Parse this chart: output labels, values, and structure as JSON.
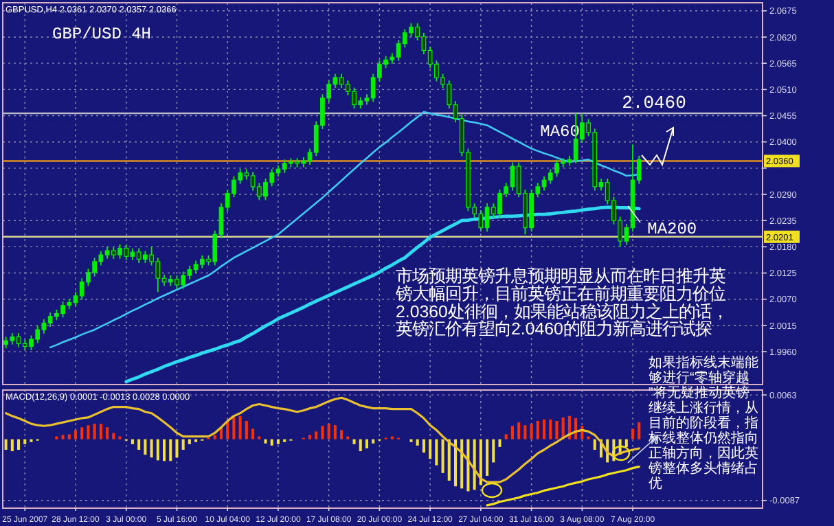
{
  "chart_data": [
    {
      "type": "candlestick",
      "title": "GBP/USD 4H",
      "categories": [
        null,
        null,
        null,
        null,
        null,
        null,
        null,
        null,
        null,
        null,
        null,
        null,
        null,
        null,
        null,
        null,
        null,
        null,
        null,
        null,
        null,
        null,
        null,
        null,
        null,
        null,
        null,
        null,
        null,
        null,
        null,
        null,
        null,
        null,
        null,
        null,
        null,
        null,
        null,
        null,
        null,
        null,
        null,
        null,
        null,
        null,
        null,
        null,
        null,
        null,
        null,
        null,
        null,
        null,
        null,
        null,
        null,
        null,
        null,
        null,
        null,
        null,
        null,
        null,
        null,
        null,
        null,
        null,
        null,
        null,
        null,
        null,
        null,
        null,
        null,
        null,
        null,
        null,
        null,
        null,
        null,
        null,
        null,
        null,
        null,
        null,
        null,
        null,
        null,
        null,
        null,
        null,
        null,
        null,
        null,
        null,
        null,
        null,
        null,
        null,
        null
      ],
      "ohlc": [
        [
          1.9975,
          1.9991,
          1.9967,
          1.9983
        ],
        [
          1.9983,
          1.9999,
          1.9975,
          1.9991
        ],
        [
          1.9991,
          1.9999,
          1.9969,
          1.9977
        ],
        [
          1.9977,
          1.9985,
          1.9963,
          1.9971
        ],
        [
          1.9971,
          1.9994,
          1.9963,
          1.9986
        ],
        [
          1.9986,
          2.0014,
          1.9978,
          2.0006
        ],
        [
          2.0006,
          2.0028,
          1.9998,
          2.002
        ],
        [
          2.002,
          2.0042,
          2.0012,
          2.0034
        ],
        [
          2.0034,
          2.0048,
          2.0026,
          2.004
        ],
        [
          2.004,
          2.0065,
          2.0032,
          2.0057
        ],
        [
          2.0057,
          2.0071,
          2.0049,
          2.0063
        ],
        [
          2.0063,
          2.0085,
          2.0055,
          2.0077
        ],
        [
          2.0077,
          2.0114,
          2.0069,
          2.0106
        ],
        [
          2.0106,
          2.0134,
          2.0098,
          2.0126
        ],
        [
          2.0126,
          2.0157,
          2.0118,
          2.0149
        ],
        [
          2.0149,
          2.0171,
          2.0141,
          2.0163
        ],
        [
          2.0163,
          2.018,
          2.0155,
          2.0172
        ],
        [
          2.0172,
          2.018,
          2.0155,
          2.0163
        ],
        [
          2.0163,
          2.0185,
          2.0155,
          2.0177
        ],
        [
          2.0177,
          2.0185,
          2.0152,
          2.016
        ],
        [
          2.016,
          2.0177,
          2.0152,
          2.0169
        ],
        [
          2.0169,
          2.0177,
          2.0146,
          2.0154
        ],
        [
          2.0154,
          2.0171,
          2.0146,
          2.0163
        ],
        [
          2.0163,
          2.018,
          2.0141,
          2.0149
        ],
        [
          2.0149,
          2.0157,
          2.0085,
          2.0114
        ],
        [
          2.0114,
          2.0122,
          2.0098,
          2.0106
        ],
        [
          2.0106,
          2.012,
          2.0098,
          2.0112
        ],
        [
          2.0112,
          2.012,
          2.0092,
          2.01
        ],
        [
          2.01,
          2.0128,
          2.0092,
          2.012
        ],
        [
          2.012,
          2.014,
          2.0112,
          2.0132
        ],
        [
          2.0132,
          2.0151,
          2.0124,
          2.0143
        ],
        [
          2.0143,
          2.0162,
          2.0135,
          2.0154
        ],
        [
          2.0154,
          2.0162,
          2.0141,
          2.0149
        ],
        [
          2.0149,
          2.0214,
          2.0141,
          2.0206
        ],
        [
          2.0206,
          2.0271,
          2.0198,
          2.0263
        ],
        [
          2.0263,
          2.03,
          2.0255,
          2.0292
        ],
        [
          2.0292,
          2.0328,
          2.0284,
          2.032
        ],
        [
          2.032,
          2.0343,
          2.0312,
          2.0335
        ],
        [
          2.0335,
          2.0343,
          2.0321,
          2.0329
        ],
        [
          2.0329,
          2.0337,
          2.0298,
          2.0306
        ],
        [
          2.0306,
          2.0314,
          2.0278,
          2.0286
        ],
        [
          2.0286,
          2.0323,
          2.0278,
          2.0315
        ],
        [
          2.0315,
          2.0343,
          2.0307,
          2.0335
        ],
        [
          2.0335,
          2.0351,
          2.0327,
          2.0343
        ],
        [
          2.0343,
          2.0363,
          2.0335,
          2.0355
        ],
        [
          2.0355,
          2.0366,
          2.0347,
          2.0358
        ],
        [
          2.0358,
          2.0366,
          2.0347,
          2.0355
        ],
        [
          2.0355,
          2.0368,
          2.0347,
          2.036
        ],
        [
          2.036,
          2.0386,
          2.0352,
          2.0378
        ],
        [
          2.0378,
          2.0443,
          2.037,
          2.0435
        ],
        [
          2.0435,
          2.05,
          2.0427,
          2.0492
        ],
        [
          2.0492,
          2.0529,
          2.0484,
          2.0521
        ],
        [
          2.0521,
          2.0543,
          2.0513,
          2.0535
        ],
        [
          2.0535,
          2.0543,
          2.0513,
          2.0521
        ],
        [
          2.0521,
          2.0529,
          2.0498,
          2.0506
        ],
        [
          2.0506,
          2.0514,
          2.047,
          2.0478
        ],
        [
          2.0478,
          2.0494,
          2.047,
          2.0486
        ],
        [
          2.0486,
          2.05,
          2.0478,
          2.0492
        ],
        [
          2.0492,
          2.0543,
          2.0484,
          2.0535
        ],
        [
          2.0535,
          2.0571,
          2.0527,
          2.0563
        ],
        [
          2.0563,
          2.058,
          2.0555,
          2.0572
        ],
        [
          2.0572,
          2.0586,
          2.0564,
          2.0578
        ],
        [
          2.0578,
          2.0614,
          2.057,
          2.0606
        ],
        [
          2.0606,
          2.0637,
          2.0598,
          2.0629
        ],
        [
          2.0629,
          2.0649,
          2.0621,
          2.0641
        ],
        [
          2.0641,
          2.0649,
          2.0613,
          2.0621
        ],
        [
          2.0621,
          2.0629,
          2.0584,
          2.0592
        ],
        [
          2.0592,
          2.06,
          2.0555,
          2.0563
        ],
        [
          2.0563,
          2.0571,
          2.0527,
          2.0535
        ],
        [
          2.0535,
          2.0543,
          2.0513,
          2.0521
        ],
        [
          2.0521,
          2.0529,
          2.047,
          2.0478
        ],
        [
          2.0478,
          2.0486,
          2.0441,
          2.0449
        ],
        [
          2.0449,
          2.0457,
          2.037,
          2.0378
        ],
        [
          2.0378,
          2.0386,
          2.0255,
          2.0263
        ],
        [
          2.0263,
          2.0271,
          2.0241,
          2.0249
        ],
        [
          2.0249,
          2.0257,
          2.0212,
          2.022
        ],
        [
          2.022,
          2.0271,
          2.0212,
          2.0263
        ],
        [
          2.0263,
          2.0271,
          2.0241,
          2.0249
        ],
        [
          2.0249,
          2.03,
          2.0241,
          2.0292
        ],
        [
          2.0292,
          2.0314,
          2.0284,
          2.0306
        ],
        [
          2.0306,
          2.0357,
          2.0298,
          2.0349
        ],
        [
          2.0349,
          2.0357,
          2.0284,
          2.0292
        ],
        [
          2.0292,
          2.03,
          2.0206,
          2.022
        ],
        [
          2.022,
          2.03,
          2.0212,
          2.0292
        ],
        [
          2.0292,
          2.0314,
          2.0284,
          2.0306
        ],
        [
          2.0306,
          2.0328,
          2.0298,
          2.032
        ],
        [
          2.032,
          2.0343,
          2.0312,
          2.0335
        ],
        [
          2.0335,
          2.0363,
          2.0327,
          2.0355
        ],
        [
          2.0355,
          2.0366,
          2.0347,
          2.0358
        ],
        [
          2.0358,
          2.0371,
          2.035,
          2.0363
        ],
        [
          2.0363,
          2.046,
          2.0355,
          2.0406
        ],
        [
          2.0406,
          2.046,
          2.0398,
          2.044
        ],
        [
          2.044,
          2.0448,
          2.0412,
          2.042
        ],
        [
          2.042,
          2.0428,
          2.0298,
          2.0306
        ],
        [
          2.0306,
          2.0323,
          2.0298,
          2.0315
        ],
        [
          2.0315,
          2.0323,
          2.0269,
          2.0277
        ],
        [
          2.0277,
          2.0285,
          2.0227,
          2.0235
        ],
        [
          2.0235,
          2.0243,
          2.018,
          2.0192
        ],
        [
          2.0192,
          2.0228,
          2.0184,
          2.022
        ],
        [
          2.022,
          2.0395,
          2.0212,
          2.032
        ],
        [
          2.032,
          2.0371,
          2.0312,
          2.0363
        ]
      ],
      "series": [
        {
          "name": "MA60",
          "type": "line",
          "color": "#40c8f0",
          "values": [
            null,
            null,
            null,
            null,
            null,
            null,
            null,
            1.9969,
            1.9974,
            1.998,
            1.9985,
            1.999,
            1.9996,
            2.0001,
            2.0006,
            2.0013,
            2.0019,
            2.0026,
            2.0032,
            2.0039,
            2.0046,
            2.0052,
            2.0059,
            2.0065,
            2.0072,
            2.0078,
            2.0084,
            2.009,
            2.0096,
            2.0102,
            2.0108,
            2.0114,
            2.012,
            2.0129,
            2.0139,
            2.0148,
            2.0157,
            2.0164,
            2.0171,
            2.0178,
            2.0185,
            2.0192,
            2.0199,
            2.0206,
            2.0217,
            2.0228,
            2.0239,
            2.025,
            2.0261,
            2.0272,
            2.0283,
            2.0295,
            2.0307,
            2.0319,
            2.0331,
            2.0343,
            2.0355,
            2.0366,
            2.0378,
            2.0389,
            2.0399,
            2.041,
            2.042,
            2.0431,
            2.0442,
            2.0452,
            2.0463,
            2.046,
            2.0457,
            2.0455,
            2.0452,
            2.0449,
            2.0446,
            2.0443,
            2.0441,
            2.0438,
            2.0435,
            2.0428,
            2.0421,
            2.0414,
            2.0407,
            2.04,
            2.0393,
            2.0386,
            2.0381,
            2.0376,
            2.0372,
            2.0367,
            2.0362,
            2.0358,
            2.036,
            2.0361,
            2.0363,
            2.0357,
            2.0351,
            2.0346,
            2.034,
            2.0335,
            2.0329,
            2.033,
            2.0332
          ]
        },
        {
          "name": "MA200",
          "type": "line",
          "color": "#30d8f0",
          "values": [
            null,
            null,
            null,
            null,
            null,
            null,
            null,
            null,
            null,
            null,
            null,
            null,
            null,
            null,
            null,
            null,
            null,
            null,
            null,
            1.9897,
            1.9902,
            1.9907,
            1.9913,
            1.9918,
            1.9923,
            1.9929,
            1.9934,
            1.9939,
            1.9943,
            1.9948,
            1.9952,
            1.9957,
            1.9961,
            1.9965,
            1.997,
            1.9974,
            1.9979,
            1.9983,
            1.9991,
            1.9998,
            2.0006,
            2.0014,
            2.0021,
            2.0029,
            2.0035,
            2.0041,
            2.0047,
            2.0053,
            2.006,
            2.0066,
            2.0072,
            2.0078,
            2.0084,
            2.009,
            2.0096,
            2.0102,
            2.0108,
            2.0114,
            2.012,
            2.0127,
            2.0135,
            2.0142,
            2.015,
            2.0157,
            2.0168,
            2.0179,
            2.0189,
            2.02,
            2.0207,
            2.0214,
            2.0221,
            2.0228,
            2.0235,
            2.0236,
            2.0238,
            2.0239,
            2.024,
            2.0242,
            2.0243,
            2.0244,
            2.0244,
            2.0245,
            2.0246,
            2.0247,
            2.0248,
            2.0248,
            2.0249,
            2.0251,
            2.0252,
            2.0254,
            2.0255,
            2.0257,
            2.0259,
            2.026,
            2.0262,
            2.0263,
            2.0263,
            2.0262,
            2.0262,
            2.0261,
            2.026
          ]
        }
      ],
      "ylim": [
        1.9891,
        2.0692
      ],
      "yticks": [
        2.0675,
        {
          "value": 2.062,
          "label": "2.0620"
        },
        2.0565,
        {
          "value": 2.051,
          "label": "2.0510"
        },
        2.0455,
        {
          "value": 2.04,
          "label": "2.0400"
        },
        {
          "value": 2.0345,
          "label": null
        },
        {
          "value": 2.029,
          "label": "2.0290"
        },
        2.0235,
        {
          "value": 2.018,
          "label": "2.0180"
        },
        2.0125,
        {
          "value": 2.007,
          "label": "2.0070"
        },
        2.0015,
        {
          "value": 1.996,
          "label": "1.9960"
        }
      ],
      "ref_lines": [
        {
          "axis": "y",
          "value": 2.036,
          "label": "2.0360",
          "color": "#e0901c"
        },
        {
          "axis": "y",
          "value": 2.0201,
          "label": "2.0201",
          "color": "#d8d890"
        },
        {
          "axis": "y",
          "value": 2.046,
          "color": "#b8b8c8"
        }
      ],
      "annotations": [
        "GBPUSD,H4 2.0361 2.0370 2.0357 2.0366",
        {
          "text": "2.0460",
          "y": 2.046
        },
        "市场预期英镑升息预期明显从而在昨日推升英镑大幅回升，目前英镑正在前期重要阻力价位2.0360处徘徊，如果能站稳该阻力之上的话，英镑汇价有望向2.0460的阻力新高进行试探"
      ],
      "grid": true,
      "tick_labels": "y"
    },
    {
      "type": "bar",
      "title": "MACD(12,26,9) 0.0001 -0.0013 0.0028 0.0000",
      "categories": [
        null,
        null,
        null,
        "25 Jun 2007",
        null,
        null,
        null,
        null,
        null,
        null,
        null,
        "28 Jun 12:00",
        null,
        null,
        null,
        null,
        null,
        null,
        null,
        "3 Jul 00:00",
        null,
        null,
        null,
        null,
        null,
        null,
        null,
        "5 Jul 16:00",
        null,
        null,
        null,
        null,
        null,
        null,
        null,
        "10 Jul 04:00",
        null,
        null,
        null,
        null,
        null,
        null,
        null,
        "12 Jul 20:00",
        null,
        null,
        null,
        null,
        null,
        null,
        null,
        "17 Jul 08:00",
        null,
        null,
        null,
        null,
        null,
        null,
        null,
        "20 Jul 00:00",
        null,
        null,
        null,
        null,
        null,
        null,
        null,
        "24 Jul 12:00",
        null,
        null,
        null,
        null,
        null,
        null,
        null,
        "27 Jul 04:00",
        null,
        null,
        null,
        null,
        null,
        null,
        null,
        "31 Jul 16:00",
        null,
        null,
        null,
        null,
        null,
        null,
        null,
        "3 Aug 08:00",
        null,
        null,
        null,
        null,
        null,
        null,
        null,
        "7 Aug 20:00",
        null
      ],
      "series": [
        {
          "type": "bar",
          "values": [
            -0.0015,
            -0.0017,
            -0.0015,
            -0.0007,
            -0.0004,
            -0.0002,
            0,
            0,
            0.0004,
            0.0006,
            0.0007,
            0.0013,
            0.0017,
            0.002,
            0.0022,
            0.0022,
            0.0017,
            0.0009,
            0.0004,
            -0.0002,
            -0.0007,
            -0.0015,
            -0.0022,
            -0.0026,
            -0.003,
            -0.0031,
            -0.0031,
            -0.0026,
            -0.0015,
            -0.0007,
            -0.0004,
            -0.0002,
            0.0002,
            0.0006,
            0.0017,
            0.0026,
            0.0031,
            0.0033,
            0.0026,
            0.0015,
            0.0004,
            -0.0006,
            -0.0009,
            -0.0007,
            -0.0004,
            -0.0002,
            0,
            0.0002,
            0.0006,
            0.0011,
            0.0019,
            0.0022,
            0.002,
            0.0013,
            0.0004,
            -0.0007,
            -0.0017,
            -0.0013,
            -0.0006,
            -0.0002,
            0.0002,
            0.0004,
            0.0002,
            0,
            -0.0004,
            -0.0009,
            -0.0019,
            -0.0028,
            -0.0037,
            -0.0048,
            -0.0059,
            -0.0067,
            -0.007,
            -0.0074,
            -0.0072,
            -0.0065,
            -0.0052,
            -0.0033,
            -0.0011,
            0.0007,
            0.0019,
            0.0024,
            0.002,
            0.0022,
            0.0026,
            0.0028,
            0.0028,
            0.0026,
            0.0031,
            0.0033,
            0.003,
            0.0019,
            0.0004,
            -0.0015,
            -0.0026,
            -0.0033,
            -0.0031,
            -0.0022,
            -0.0011,
            0.0015,
            0.0024
          ],
          "colors": [
            "#f0e040",
            "#f0e040",
            "#f0e040",
            "#f0e040",
            "#f0e040",
            "#f0e040",
            "#ff3000",
            "#ff3000",
            "#ff3000",
            "#ff3000",
            "#ff3000",
            "#ff3000",
            "#ff3000",
            "#ff3000",
            "#ff3000",
            "#ff3000",
            "#ff3000",
            "#ff3000",
            "#ff3000",
            "#f0e040",
            "#f0e040",
            "#f0e040",
            "#f0e040",
            "#f0e040",
            "#f0e040",
            "#f0e040",
            "#f0e040",
            "#f0e040",
            "#f0e040",
            "#f0e040",
            "#f0e040",
            "#f0e040",
            "#ff3000",
            "#ff3000",
            "#ff3000",
            "#ff3000",
            "#ff3000",
            "#ff3000",
            "#ff3000",
            "#ff3000",
            "#ff3000",
            "#f0e040",
            "#f0e040",
            "#f0e040",
            "#f0e040",
            "#f0e040",
            "#ff3000",
            "#ff3000",
            "#ff3000",
            "#ff3000",
            "#ff3000",
            "#ff3000",
            "#ff3000",
            "#ff3000",
            "#ff3000",
            "#f0e040",
            "#f0e040",
            "#f0e040",
            "#f0e040",
            "#f0e040",
            "#ff3000",
            "#ff3000",
            "#ff3000",
            "#ff3000",
            "#f0e040",
            "#f0e040",
            "#f0e040",
            "#f0e040",
            "#f0e040",
            "#f0e040",
            "#f0e040",
            "#f0e040",
            "#f0e040",
            "#f0e040",
            "#f0e040",
            "#f0e040",
            "#f0e040",
            "#f0e040",
            "#f0e040",
            "#ff3000",
            "#ff3000",
            "#ff3000",
            "#ff3000",
            "#ff3000",
            "#ff3000",
            "#ff3000",
            "#ff3000",
            "#ff3000",
            "#ff3000",
            "#ff3000",
            "#ff3000",
            "#ff3000",
            "#ff3000",
            "#f0e040",
            "#f0e040",
            "#f0e040",
            "#f0e040",
            "#f0e040",
            "#f0e040",
            "#ff3000",
            "#ff3000"
          ]
        },
        {
          "type": "line",
          "color": "#e8c030",
          "values": [
            0.0037,
            0.0033,
            0.003,
            0.0026,
            0.0022,
            0.002,
            0.0019,
            0.002,
            0.0022,
            0.0024,
            0.0026,
            0.0028,
            0.003,
            0.0031,
            0.0035,
            0.0039,
            0.0043,
            0.0046,
            0.0046,
            0.0046,
            0.0044,
            0.0043,
            0.0039,
            0.0037,
            0.0031,
            0.0024,
            0.0017,
            0.0009,
            0.0004,
            0.0004,
            0.0004,
            0.0004,
            0.0004,
            0.0009,
            0.0017,
            0.0026,
            0.0033,
            0.0037,
            0.0043,
            0.0048,
            0.005,
            0.0048,
            0.0046,
            0.0044,
            0.0043,
            0.0041,
            0.0039,
            0.0041,
            0.0044,
            0.0046,
            0.005,
            0.0054,
            0.0057,
            0.0059,
            0.0056,
            0.0052,
            0.0048,
            0.0046,
            0.0044,
            0.0044,
            0.0044,
            0.0043,
            0.0043,
            0.0043,
            0.0043,
            0.0037,
            0.003,
            0.002,
            0.0013,
            0.0004,
            -0.0004,
            -0.0011,
            -0.0019,
            -0.003,
            -0.0043,
            -0.0056,
            -0.0061,
            -0.0061,
            -0.0061,
            -0.0057,
            -0.005,
            -0.0043,
            -0.0035,
            -0.0028,
            -0.002,
            -0.0015,
            -0.0009,
            -0.0004,
            0.0002,
            0.0007,
            0.0011,
            0.0013,
            0.0011,
            0.0006,
            -0.0004,
            -0.0019,
            -0.0024,
            -0.002,
            -0.0017,
            -0.0015,
            -0.0013
          ]
        },
        {
          "type": "line",
          "color": "#f0e020",
          "values": [
            null,
            null,
            null,
            null,
            null,
            null,
            null,
            null,
            null,
            null,
            null,
            null,
            null,
            null,
            null,
            null,
            null,
            null,
            null,
            null,
            null,
            null,
            null,
            null,
            null,
            null,
            null,
            null,
            null,
            null,
            null,
            null,
            null,
            null,
            null,
            null,
            null,
            null,
            null,
            null,
            null,
            null,
            null,
            null,
            null,
            null,
            null,
            null,
            null,
            null,
            null,
            null,
            null,
            null,
            null,
            null,
            null,
            null,
            null,
            null,
            null,
            null,
            null,
            null,
            null,
            null,
            null,
            null,
            null,
            null,
            null,
            null,
            null,
            null,
            null,
            null,
            -0.0094,
            -0.0092,
            -0.0089,
            -0.0087,
            -0.0085,
            -0.0083,
            -0.008,
            -0.0078,
            -0.0076,
            -0.0073,
            -0.0071,
            -0.0069,
            -0.0067,
            -0.0064,
            -0.0062,
            -0.006,
            -0.0057,
            -0.0055,
            -0.0053,
            -0.005,
            -0.0048,
            -0.0046,
            -0.0044,
            -0.0041,
            -0.0039
          ]
        }
      ],
      "ylim": [
        -0.0098,
        0.007
      ],
      "yticks": [
        0.0063,
        -0.0087
      ],
      "annotations": [
        "如果指标线末端能够进行“零轴穿越”将无疑推动英镑继续上涨行情，从目前的阶段看，指标线整体仍然指向正轴方向，因此英镑整体多头情绪占优"
      ],
      "grid": true
    }
  ]
}
